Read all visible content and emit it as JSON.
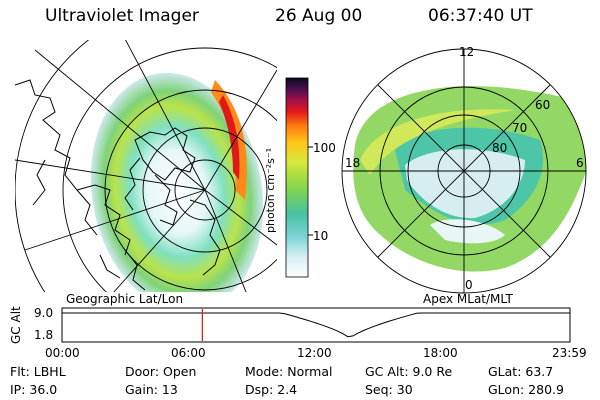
{
  "header": {
    "title": "Ultraviolet Imager",
    "date": "26 Aug 00",
    "time": "06:37:40 UT"
  },
  "left_panel": {
    "caption": "Geographic Lat/Lon"
  },
  "right_panel": {
    "caption": "Apex MLat/MLT",
    "mlt_labels": [
      "12",
      "18",
      "6",
      "0"
    ],
    "lat_labels": [
      "60",
      "70",
      "80"
    ]
  },
  "colorbar": {
    "unit_label": "photon cm⁻²s⁻¹",
    "tick_labels": [
      "100",
      "10"
    ]
  },
  "altitude_plot": {
    "ylabel": "GC Alt",
    "yticks": [
      "9.0",
      "1.8"
    ],
    "xticks": [
      "00:00",
      "06:00",
      "12:00",
      "18:00",
      "23:59"
    ],
    "marker_time_hours": 6.63
  },
  "info": {
    "row1": [
      "Flt: LBHL",
      "Door: Open",
      "Mode: Normal",
      "GC Alt: 9.0 Re",
      "GLat:  63.7"
    ],
    "row2": [
      "IP: 36.0",
      "Gain: 13",
      "Dsp:    2.4",
      "Seq: 30",
      "GLon: 280.9"
    ]
  }
}
